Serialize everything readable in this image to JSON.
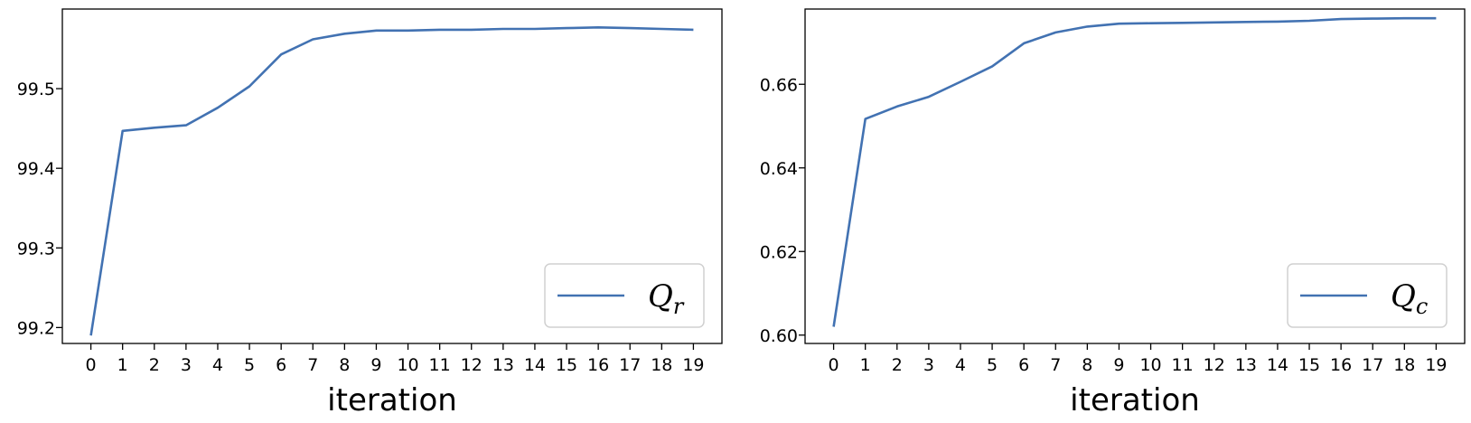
{
  "chart_data": [
    {
      "type": "line",
      "title": "",
      "xlabel": "iteration",
      "ylabel": "",
      "x": [
        0,
        1,
        2,
        3,
        4,
        5,
        6,
        7,
        8,
        9,
        10,
        11,
        12,
        13,
        14,
        15,
        16,
        17,
        18,
        19
      ],
      "xticks": [
        "0",
        "1",
        "2",
        "3",
        "4",
        "5",
        "6",
        "7",
        "8",
        "9",
        "10",
        "11",
        "12",
        "13",
        "14",
        "15",
        "16",
        "17",
        "18",
        "19"
      ],
      "yticks": [
        99.2,
        99.3,
        99.4,
        99.5
      ],
      "ytick_labels": [
        "99.2",
        "99.3",
        "99.4",
        "99.5"
      ],
      "ylim": [
        99.18,
        99.6
      ],
      "xlim": [
        -0.9,
        19.9
      ],
      "grid": false,
      "legend_position": "lower right",
      "legend_main": "Q",
      "legend_sub": "r",
      "color": "#4272b2",
      "series": [
        {
          "name": "Qr",
          "values": [
            99.19,
            99.447,
            99.451,
            99.454,
            99.476,
            99.503,
            99.543,
            99.562,
            99.569,
            99.573,
            99.573,
            99.574,
            99.574,
            99.575,
            99.575,
            99.576,
            99.577,
            99.576,
            99.575,
            99.574
          ]
        }
      ]
    },
    {
      "type": "line",
      "title": "",
      "xlabel": "iteration",
      "ylabel": "",
      "x": [
        0,
        1,
        2,
        3,
        4,
        5,
        6,
        7,
        8,
        9,
        10,
        11,
        12,
        13,
        14,
        15,
        16,
        17,
        18,
        19
      ],
      "xticks": [
        "0",
        "1",
        "2",
        "3",
        "4",
        "5",
        "6",
        "7",
        "8",
        "9",
        "10",
        "11",
        "12",
        "13",
        "14",
        "15",
        "16",
        "17",
        "18",
        "19"
      ],
      "yticks": [
        0.6,
        0.62,
        0.64,
        0.66
      ],
      "ytick_labels": [
        "0.60",
        "0.62",
        "0.64",
        "0.66"
      ],
      "ylim": [
        0.598,
        0.678
      ],
      "xlim": [
        -0.9,
        19.9
      ],
      "grid": false,
      "legend_position": "lower right",
      "legend_main": "Q",
      "legend_sub": "c",
      "color": "#4272b2",
      "series": [
        {
          "name": "Qc",
          "values": [
            0.602,
            0.6517,
            0.6547,
            0.657,
            0.6606,
            0.6643,
            0.6698,
            0.6724,
            0.6738,
            0.6745,
            0.6746,
            0.6747,
            0.6748,
            0.6749,
            0.675,
            0.6752,
            0.6756,
            0.6757,
            0.6758,
            0.6758
          ]
        }
      ]
    }
  ]
}
